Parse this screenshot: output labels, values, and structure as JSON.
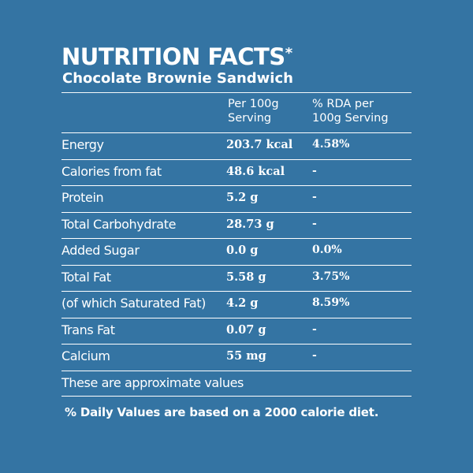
{
  "header": {
    "title": "NUTRITION FACTS",
    "title_mark": "*",
    "subtitle": "Chocolate Brownie Sandwich"
  },
  "columns": {
    "per_100g_line1": "Per 100g",
    "per_100g_line2": "Serving",
    "rda_line1": "% RDA per",
    "rda_line2": "100g Serving"
  },
  "rows": [
    {
      "label": "Energy",
      "value": "203.7 kcal",
      "rda": "4.58%"
    },
    {
      "label": "Calories from fat",
      "value": "48.6 kcal",
      "rda": "-"
    },
    {
      "label": "Protein",
      "value": "5.2 g",
      "rda": "-"
    },
    {
      "label": "Total  Carbohydrate",
      "value": "28.73 g",
      "rda": "-"
    },
    {
      "label": "Added Sugar",
      "value": "0.0 g",
      "rda": "0.0%"
    },
    {
      "label": "Total  Fat",
      "value": "5.58 g",
      "rda": "3.75%"
    },
    {
      "label": "(of which Saturated Fat)",
      "value": "4.2 g",
      "rda": "8.59%"
    },
    {
      "label": "Trans  Fat",
      "value": "0.07 g",
      "rda": "-"
    },
    {
      "label": "Calcium",
      "value": "55 mg",
      "rda": "-"
    }
  ],
  "note": "These are approximate values",
  "footnote": "% Daily Values are based on a 2000 calorie diet.",
  "colors": {
    "background": "#3474a3",
    "text": "#ffffff"
  }
}
